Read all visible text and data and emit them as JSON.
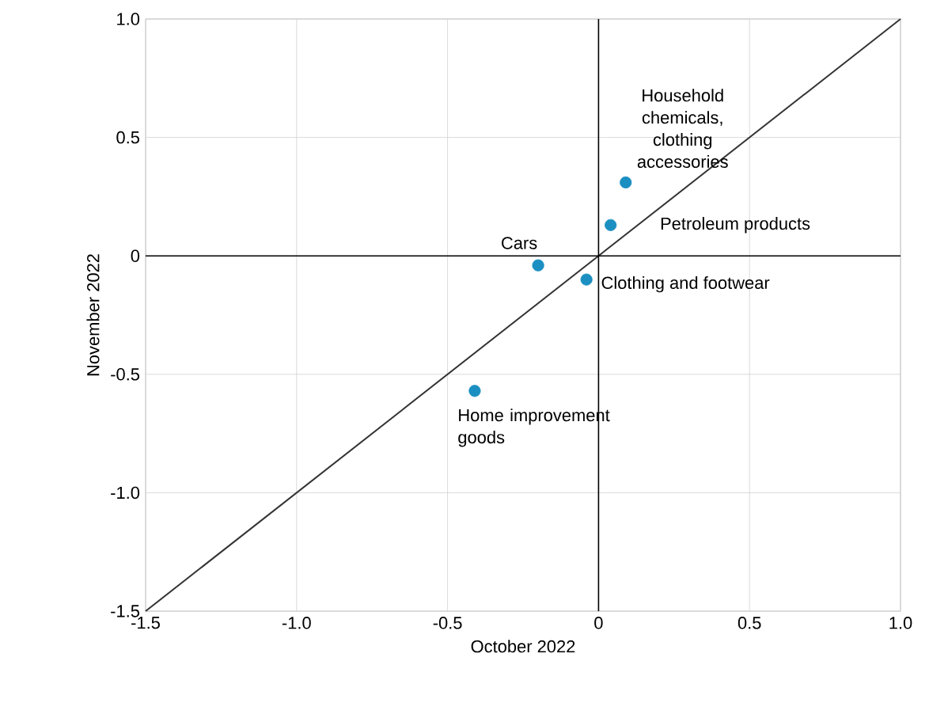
{
  "chart_data": {
    "type": "scatter",
    "xlabel": "October 2022",
    "ylabel": "November 2022",
    "xlim": [
      -1.5,
      1.0
    ],
    "ylim": [
      -1.5,
      1.0
    ],
    "xticks": [
      -1.5,
      {
        "value": -1.0,
        "label": "-1.0"
      },
      -0.5,
      0,
      0.5,
      {
        "value": 1.0,
        "label": "1.0"
      }
    ],
    "yticks": [
      -1.5,
      {
        "value": -1.0,
        "label": "-1.0"
      },
      -0.5,
      0,
      0.5,
      {
        "value": 1.0,
        "label": "1.0"
      }
    ],
    "grid": true,
    "marker": "circle",
    "series": [
      {
        "type": "scatter",
        "color": "#1b8fc1",
        "x": [
          0.09,
          0.04,
          -0.2,
          -0.04,
          -0.41
        ],
        "values": [
          0.31,
          0.13,
          -0.04,
          -0.1,
          -0.57
        ]
      },
      {
        "type": "line",
        "color": "#333333",
        "marker": "none",
        "x": [
          -1.5,
          1.0
        ],
        "values": [
          -1.5,
          1.0
        ]
      }
    ],
    "annotations": [
      {
        "text": "Household chemicals, clothing accessories",
        "x": 0.09,
        "y": 0.31
      },
      {
        "text": "Petroleum products",
        "x": 0.04,
        "y": 0.13
      },
      {
        "text": "Cars",
        "x": -0.2,
        "y": -0.04
      },
      {
        "text": "Clothing and footwear",
        "x": -0.04,
        "y": -0.1
      },
      {
        "text": "Home improvement goods",
        "x": -0.41,
        "y": -0.57
      }
    ]
  }
}
